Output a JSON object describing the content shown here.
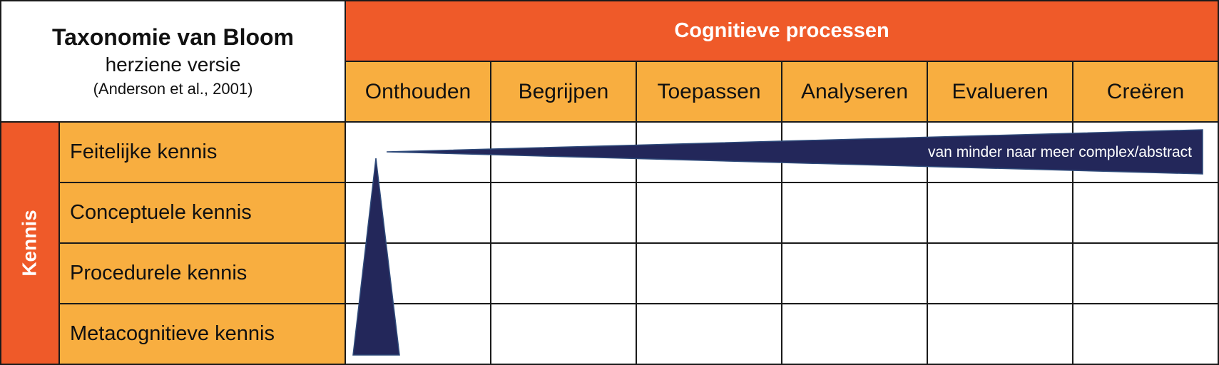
{
  "title": {
    "main": "Taxonomie van Bloom",
    "sub": "herziene versie",
    "citation": "(Anderson et al., 2001)"
  },
  "processes": {
    "header": "Cognitieve processen",
    "columns": [
      "Onthouden",
      "Begrijpen",
      "Toepassen",
      "Analyseren",
      "Evalueren",
      "Creëren"
    ]
  },
  "knowledge": {
    "header": "Kennis",
    "rows": [
      "Feitelijke kennis",
      "Conceptuele kennis",
      "Procedurele kennis",
      "Metacognitieve kennis"
    ]
  },
  "arrow": {
    "caption": "van minder naar meer complex/abstract"
  },
  "colors": {
    "header_orange": "#EF5A29",
    "cell_orange": "#F8AE40",
    "arrow_navy": "#23275A"
  }
}
